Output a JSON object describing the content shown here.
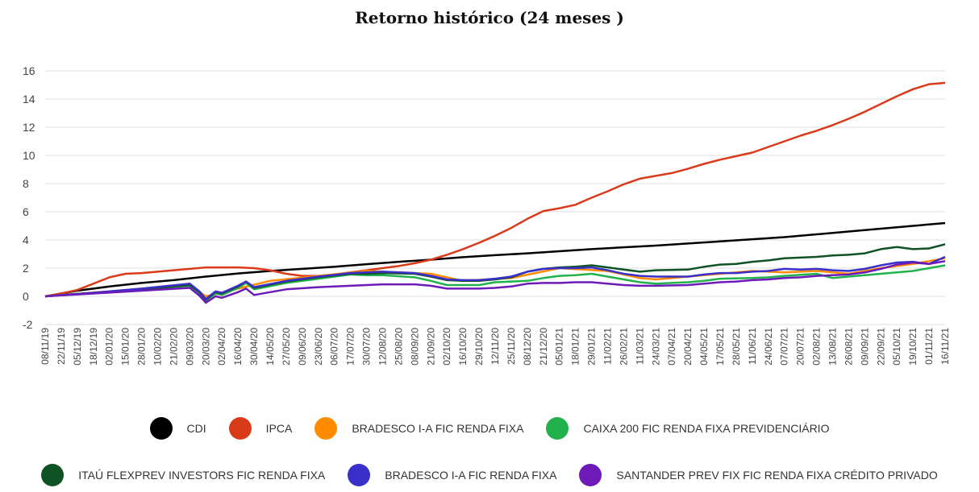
{
  "chart_data": {
    "type": "line",
    "title": "Retorno histórico (24 meses )",
    "xlabel": "",
    "ylabel": "",
    "ylim": [
      -2,
      16
    ],
    "yticks": [
      16,
      14,
      12,
      10,
      8,
      6,
      4,
      2,
      0,
      -2
    ],
    "grid": true,
    "legend_position": "bottom",
    "x_tick_labels": [
      "08/11/19",
      "22/11/19",
      "05/12/19",
      "18/12/19",
      "02/01/20",
      "15/01/20",
      "28/01/20",
      "10/02/20",
      "21/02/20",
      "09/03/20",
      "20/03/20",
      "02/04/20",
      "16/04/20",
      "30/04/20",
      "14/05/20",
      "27/05/20",
      "09/06/20",
      "23/06/20",
      "06/07/20",
      "17/07/20",
      "30/07/20",
      "12/08/20",
      "25/08/20",
      "08/09/20",
      "21/09/20",
      "02/10/20",
      "16/10/20",
      "29/10/20",
      "12/11/20",
      "25/11/20",
      "08/12/20",
      "21/12/20",
      "05/01/21",
      "18/01/21",
      "29/01/21",
      "11/02/21",
      "26/02/21",
      "11/03/21",
      "24/03/21",
      "07/04/21",
      "20/04/21",
      "04/05/21",
      "17/05/21",
      "28/05/21",
      "11/06/21",
      "24/06/21",
      "07/07/21",
      "20/07/21",
      "02/08/21",
      "13/08/21",
      "26/08/21",
      "09/09/21",
      "22/09/21",
      "05/10/21",
      "19/10/21",
      "01/11/21",
      "16/11/21"
    ],
    "series": [
      {
        "name": "CDI",
        "color": "#000000",
        "x": [
          0,
          2,
          4,
          6,
          8,
          10,
          12,
          14,
          16,
          18,
          20,
          22,
          24,
          26,
          28,
          30,
          32,
          34,
          36,
          38,
          40,
          42,
          44,
          46,
          48,
          50,
          52,
          54,
          56
        ],
        "values": [
          0,
          0.4,
          0.7,
          0.95,
          1.15,
          1.4,
          1.62,
          1.8,
          1.95,
          2.1,
          2.28,
          2.45,
          2.6,
          2.78,
          2.92,
          3.05,
          3.2,
          3.35,
          3.48,
          3.6,
          3.75,
          3.9,
          4.05,
          4.2,
          4.4,
          4.6,
          4.8,
          5.0,
          5.2
        ]
      },
      {
        "name": "IPCA",
        "color": "#d93b1a",
        "x": [
          0,
          1,
          2,
          3,
          4,
          5,
          6,
          7,
          8,
          9,
          10,
          11,
          12,
          13,
          14,
          15,
          16,
          17,
          18,
          19,
          20,
          21,
          22,
          23,
          24,
          25,
          26,
          27,
          28,
          29,
          30,
          31,
          32,
          33,
          34,
          35,
          36,
          37,
          38,
          39,
          40,
          41,
          42,
          43,
          44,
          45,
          46,
          47,
          48,
          49,
          50,
          51,
          52,
          53,
          54,
          55,
          56
        ],
        "values": [
          0,
          0.2,
          0.45,
          0.9,
          1.35,
          1.6,
          1.65,
          1.75,
          1.85,
          1.95,
          2.05,
          2.05,
          2.05,
          2.0,
          1.85,
          1.6,
          1.45,
          1.45,
          1.55,
          1.7,
          1.85,
          2.0,
          2.15,
          2.35,
          2.6,
          2.95,
          3.35,
          3.8,
          4.3,
          4.85,
          5.5,
          6.05,
          6.25,
          6.5,
          7.0,
          7.45,
          7.95,
          8.35,
          8.55,
          8.75,
          9.05,
          9.4,
          9.7,
          9.95,
          10.2,
          10.6,
          11.0,
          11.4,
          11.75,
          12.15,
          12.6,
          13.1,
          13.65,
          14.2,
          14.7,
          15.05,
          15.15
        ]
      },
      {
        "name": "BRADESCO I-A FIC RENDA FIXA",
        "color": "#ff8c00",
        "x": [
          0,
          9,
          10,
          14,
          20,
          24,
          26,
          29,
          32,
          35,
          37,
          38,
          40,
          42,
          44,
          46,
          48,
          50,
          52,
          54,
          56
        ],
        "values": [
          0,
          0.8,
          0.0,
          1.1,
          1.8,
          1.6,
          1.1,
          1.3,
          2.0,
          1.8,
          1.3,
          1.2,
          1.4,
          1.6,
          1.8,
          1.7,
          1.8,
          1.6,
          2.0,
          2.3,
          2.7
        ]
      },
      {
        "name": "CAIXA 200 FIC RENDA FIXA PREVIDENCIÁRIO",
        "color": "#22b24c",
        "x": [
          0,
          3,
          6,
          9,
          9.6,
          10,
          10.6,
          11,
          12,
          12.5,
          13,
          15,
          17,
          19,
          20,
          21,
          23,
          24,
          25,
          26,
          27,
          28,
          30,
          31,
          32,
          33,
          34,
          35,
          36,
          37,
          38,
          40,
          41,
          42,
          44,
          45,
          46,
          48,
          49,
          50,
          51,
          52,
          54,
          55,
          56
        ],
        "values": [
          0,
          0.25,
          0.5,
          0.75,
          0.2,
          -0.3,
          0.2,
          0.1,
          0.6,
          0.95,
          0.5,
          0.95,
          1.25,
          1.55,
          1.5,
          1.5,
          1.35,
          1.1,
          0.8,
          0.8,
          0.8,
          1.0,
          1.1,
          1.3,
          1.45,
          1.5,
          1.6,
          1.4,
          1.2,
          1.0,
          0.9,
          1.0,
          1.1,
          1.25,
          1.3,
          1.35,
          1.45,
          1.6,
          1.3,
          1.4,
          1.5,
          1.6,
          1.8,
          2.0,
          2.2
        ]
      },
      {
        "name": "ITAÚ FLEXPREV INVESTORS FIC RENDA FIXA",
        "color": "#0f5223",
        "x": [
          0,
          3,
          6,
          9,
          9.6,
          10,
          10.6,
          11,
          12,
          12.5,
          13,
          15,
          17,
          19,
          20,
          21,
          23,
          24,
          25,
          26,
          27,
          28,
          29,
          30,
          31,
          32,
          33,
          34,
          35,
          36,
          37,
          38,
          40,
          41,
          42,
          43,
          44,
          45,
          46,
          47,
          48,
          49,
          50,
          51,
          52,
          53,
          54,
          55,
          56
        ],
        "values": [
          0,
          0.25,
          0.5,
          0.8,
          0.3,
          -0.25,
          0.3,
          0.2,
          0.7,
          1.05,
          0.6,
          1.05,
          1.35,
          1.6,
          1.6,
          1.65,
          1.6,
          1.4,
          1.15,
          1.1,
          1.1,
          1.2,
          1.35,
          1.75,
          1.95,
          2.05,
          2.1,
          2.2,
          2.05,
          1.9,
          1.75,
          1.85,
          1.9,
          2.1,
          2.25,
          2.3,
          2.45,
          2.55,
          2.7,
          2.75,
          2.8,
          2.9,
          2.95,
          3.05,
          3.35,
          3.5,
          3.35,
          3.4,
          3.7
        ]
      },
      {
        "name": "BRADESCO I-A FIC RENDA FIXA",
        "color": "#3a2fc8",
        "x": [
          0,
          3,
          6,
          9,
          9.6,
          10,
          10.6,
          11,
          12,
          12.5,
          13,
          15,
          17,
          19,
          20,
          21,
          23,
          24,
          25,
          26,
          27,
          28,
          29,
          30,
          31,
          32,
          33,
          34,
          35,
          36,
          37,
          38,
          40,
          41,
          42,
          43,
          44,
          45,
          46,
          47,
          48,
          49,
          50,
          51,
          52,
          53,
          54,
          55,
          56
        ],
        "values": [
          0,
          0.25,
          0.55,
          0.9,
          0.35,
          -0.2,
          0.35,
          0.25,
          0.75,
          1.05,
          0.65,
          1.1,
          1.4,
          1.65,
          1.7,
          1.75,
          1.65,
          1.45,
          1.2,
          1.15,
          1.15,
          1.25,
          1.4,
          1.75,
          1.95,
          2.0,
          2.0,
          2.05,
          1.85,
          1.6,
          1.45,
          1.4,
          1.4,
          1.55,
          1.65,
          1.65,
          1.75,
          1.8,
          1.95,
          1.9,
          1.95,
          1.85,
          1.8,
          1.95,
          2.2,
          2.4,
          2.45,
          2.3,
          2.8
        ]
      },
      {
        "name": "SANTANDER PREV FIX FIC RENDA FIXA CRÉDITO PRIVADO",
        "color": "#6d1ab8",
        "x": [
          0,
          3,
          6,
          9,
          9.6,
          10,
          10.6,
          11,
          12,
          12.5,
          13,
          15,
          17,
          19,
          20,
          21,
          23,
          24,
          25,
          26,
          27,
          28,
          29,
          30,
          31,
          32,
          33,
          34,
          35,
          36,
          37,
          38,
          40,
          41,
          42,
          43,
          44,
          45,
          46,
          47,
          48,
          49,
          50,
          51,
          52,
          53,
          54,
          55,
          56
        ],
        "values": [
          0,
          0.2,
          0.4,
          0.6,
          0.05,
          -0.45,
          0.0,
          -0.1,
          0.3,
          0.55,
          0.1,
          0.5,
          0.65,
          0.75,
          0.8,
          0.85,
          0.85,
          0.75,
          0.55,
          0.55,
          0.55,
          0.6,
          0.7,
          0.9,
          0.95,
          0.95,
          1.0,
          1.0,
          0.9,
          0.8,
          0.75,
          0.75,
          0.8,
          0.9,
          1.0,
          1.05,
          1.15,
          1.2,
          1.3,
          1.35,
          1.45,
          1.5,
          1.55,
          1.7,
          1.95,
          2.25,
          2.4,
          2.3,
          2.5
        ]
      }
    ]
  },
  "legend": {
    "row1": [
      {
        "label": "CDI",
        "color": "#000000"
      },
      {
        "label": "IPCA",
        "color": "#d93b1a"
      },
      {
        "label": "BRADESCO I-A FIC RENDA FIXA",
        "color": "#ff8c00"
      },
      {
        "label": "CAIXA 200 FIC RENDA FIXA PREVIDENCIÁRIO",
        "color": "#22b24c"
      }
    ],
    "row2": [
      {
        "label": "ITAÚ FLEXPREV INVESTORS FIC RENDA FIXA",
        "color": "#0f5223"
      },
      {
        "label": "BRADESCO I-A FIC RENDA FIXA",
        "color": "#3a2fc8"
      },
      {
        "label": "SANTANDER PREV FIX FIC RENDA FIXA CRÉDITO PRIVADO",
        "color": "#6d1ab8"
      }
    ]
  }
}
